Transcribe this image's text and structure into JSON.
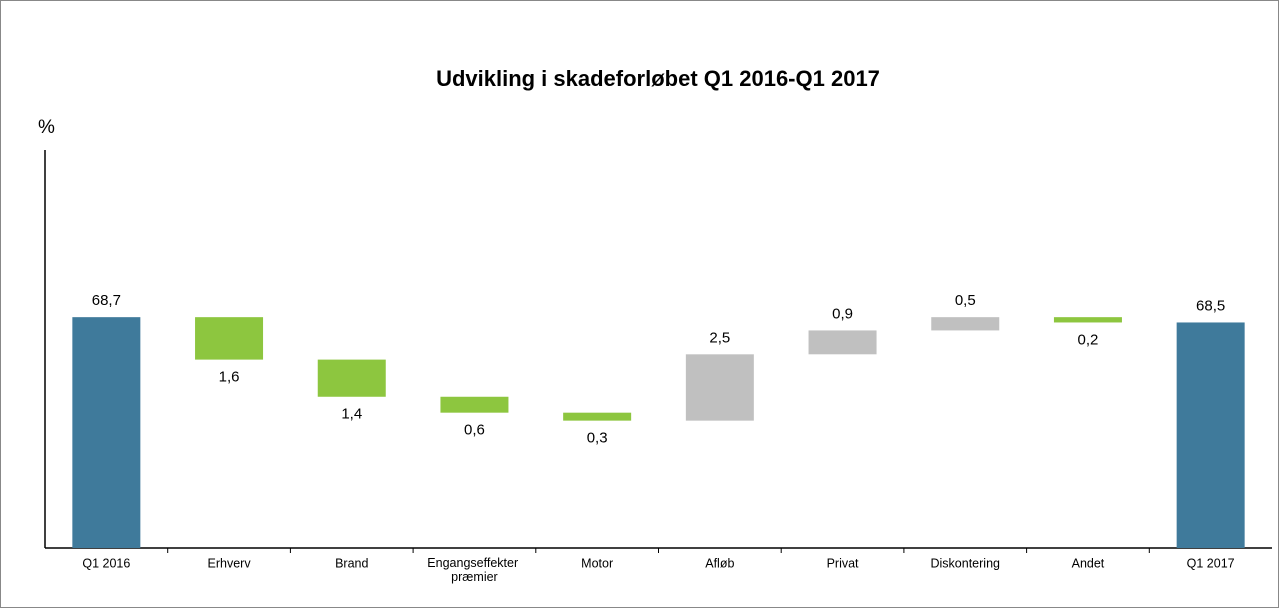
{
  "chart_data": {
    "type": "waterfall",
    "title": "Udvikling i skadeforløbet Q1 2016-Q1 2017",
    "y_label": "%",
    "categories": [
      "Q1 2016",
      "Erhverv",
      "Brand",
      "Engangseffekter præmier",
      "Motor",
      "Afløb",
      "Privat",
      "Diskontering",
      "Andet",
      "Q1 2017"
    ],
    "kinds": [
      "total",
      "delta",
      "delta",
      "delta",
      "delta",
      "delta",
      "delta",
      "delta",
      "delta",
      "total"
    ],
    "values": [
      68.7,
      -1.6,
      -1.4,
      -0.6,
      -0.3,
      2.5,
      0.9,
      0.5,
      -0.2,
      68.5
    ],
    "value_labels": [
      "68,7",
      "1,6",
      "1,4",
      "0,6",
      "0,3",
      "2,5",
      "0,9",
      "0,5",
      "0,2",
      "68,5"
    ],
    "colors": {
      "total": "#3f7a9b",
      "decrease": "#8dc63f",
      "increase": "#c0c0c0"
    },
    "ylim": [
      60,
      75
    ]
  }
}
